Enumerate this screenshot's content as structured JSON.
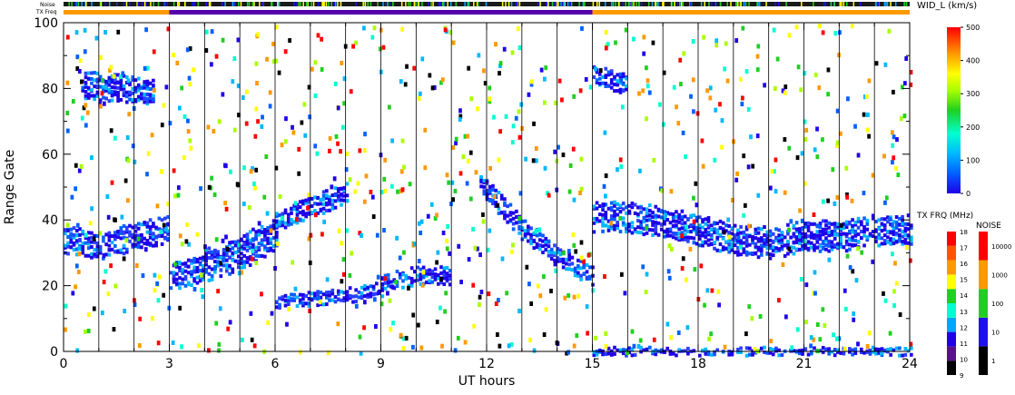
{
  "chart_data": {
    "type": "heatmap",
    "xlabel": "UT hours",
    "ylabel": "Range Gate",
    "xlim": [
      0,
      24
    ],
    "ylim": [
      0,
      100
    ],
    "xticks": [
      0,
      3,
      6,
      9,
      12,
      15,
      18,
      21,
      24
    ],
    "yticks": [
      0,
      20,
      40,
      60,
      80,
      100
    ],
    "minor_x_step": 1,
    "minor_y_step": 10,
    "grid": "vertical lines at each hour",
    "noise_bar_label": "Noise",
    "tx_freq_bar_label": "TX Freq",
    "tx_freq_segments": [
      {
        "start": 0,
        "end": 3,
        "color": "#ff9900"
      },
      {
        "start": 3,
        "end": 15,
        "color": "#5500aa"
      },
      {
        "start": 15,
        "end": 24,
        "color": "#ff9900"
      }
    ],
    "colorbar_width": {
      "title": "WID_L (km/s)",
      "ticks": [
        "0",
        "100",
        "200",
        "300",
        "400",
        "500"
      ],
      "range": [
        0,
        500
      ]
    },
    "colorbar_txfreq": {
      "title": "TX FRQ (MHz)",
      "ticks": [
        "9",
        "10",
        "11",
        "12",
        "13",
        "14",
        "15",
        "16",
        "17",
        "18"
      ],
      "colors": [
        "#000000",
        "#5a0f8c",
        "#1f00e8",
        "#00a6ff",
        "#00ffd0",
        "#20d020",
        "#ffff00",
        "#ff9900",
        "#ff5500",
        "#ff0000"
      ]
    },
    "colorbar_noise": {
      "title": "NOISE",
      "ticks": [
        "1",
        "10",
        "100",
        "1000",
        "10000"
      ],
      "colors": [
        "#000000",
        "#2010f0",
        "#20d020",
        "#ff9900",
        "#ff0000"
      ]
    },
    "echo_bands": [
      {
        "name": "band-a",
        "x": [
          0,
          1,
          2,
          3
        ],
        "y": [
          35,
          33,
          36,
          38
        ],
        "thickness": 8
      },
      {
        "name": "band-b",
        "x": [
          3,
          4,
          5,
          6
        ],
        "y": [
          24,
          26,
          30,
          36
        ],
        "thickness": 8
      },
      {
        "name": "band-c",
        "x": [
          4,
          5,
          6
        ],
        "y": [
          30,
          34,
          40
        ],
        "thickness": 4
      },
      {
        "name": "band-d",
        "x": [
          6,
          7,
          8
        ],
        "y": [
          40,
          45,
          49
        ],
        "thickness": 6
      },
      {
        "name": "band-e",
        "x": [
          6,
          7,
          8,
          9
        ],
        "y": [
          16,
          17,
          18,
          20
        ],
        "thickness": 4
      },
      {
        "name": "band-f",
        "x": [
          9,
          10,
          11
        ],
        "y": [
          22,
          24,
          24
        ],
        "thickness": 5
      },
      {
        "name": "band-g",
        "x": [
          11.8,
          12.5,
          13,
          14,
          15
        ],
        "y": [
          52,
          44,
          38,
          30,
          24
        ],
        "thickness": 6
      },
      {
        "name": "band-h",
        "x": [
          15,
          16,
          17,
          18,
          19,
          20,
          21,
          22,
          23,
          24
        ],
        "y": [
          42,
          42,
          40,
          38,
          35,
          34,
          36,
          36,
          38,
          38
        ],
        "thickness": 9
      },
      {
        "name": "band-i",
        "x": [
          0.5,
          2.5
        ],
        "y": [
          82,
          80
        ],
        "thickness": 8
      },
      {
        "name": "band-j",
        "x": [
          15,
          16
        ],
        "y": [
          85,
          82
        ],
        "thickness": 6
      },
      {
        "name": "band-k",
        "x": [
          15,
          24
        ],
        "y": [
          1,
          1
        ],
        "thickness": 2
      }
    ]
  }
}
